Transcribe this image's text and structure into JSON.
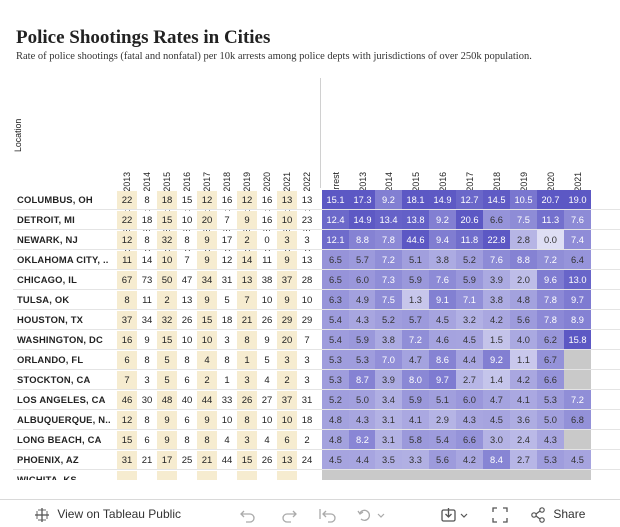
{
  "title": "Police Shootings Rates in Cities",
  "subtitle": "Rate of police shootings (fatal and nonfatal) per 10k arrests among police depts with jurisdictions of over 250k population.",
  "location_header": "Location",
  "count_headers": [
    "Police Shootings 2013",
    "Police Shootings 2014",
    "Police Shootings 2015",
    "Police Shootings 2016",
    "Police Shootings 2017",
    "Police Shootings 2018",
    "Police Shootings 2019",
    "Police Shootings 2020",
    "Police Shootings 2021",
    "Police Shootings 2022"
  ],
  "rate_headers": [
    "Avg Shootings/Arrest",
    "Shootings/Arrest 2013",
    "Shootings/Arrest 2014",
    "Shootings/Arrest 2015",
    "Shootings/Arrest 2016",
    "Shootings/Arrest 2017",
    "Shootings/Arrest 2018",
    "Shootings/Arrest 2019",
    "Shootings/Arrest 2020",
    "Shootings/Arrest 2021"
  ],
  "rows": [
    {
      "loc": "COLUMBUS, OH",
      "counts": [
        "22",
        "8",
        "18",
        "15",
        "12",
        "16",
        "12",
        "16",
        "13",
        "13"
      ],
      "rates": [
        "15.1",
        "17.3",
        "9.2",
        "18.1",
        "14.9",
        "12.7",
        "14.5",
        "10.5",
        "20.7",
        "19.0"
      ]
    },
    {
      "loc": "DETROIT, MI",
      "counts": [
        "22",
        "18",
        "15",
        "10",
        "20",
        "7",
        "9",
        "16",
        "10",
        "23"
      ],
      "rates": [
        "12.4",
        "14.9",
        "13.4",
        "13.8",
        "9.2",
        "20.6",
        "6.6",
        "7.5",
        "11.3",
        "7.6"
      ]
    },
    {
      "loc": "NEWARK, NJ",
      "counts": [
        "12",
        "8",
        "32",
        "8",
        "9",
        "17",
        "2",
        "0",
        "3",
        "3"
      ],
      "rates": [
        "12.1",
        "8.8",
        "7.8",
        "44.6",
        "9.4",
        "11.8",
        "22.8",
        "2.8",
        "0.0",
        "7.4"
      ]
    },
    {
      "loc": "OKLAHOMA CITY, ..",
      "counts": [
        "11",
        "14",
        "10",
        "7",
        "9",
        "12",
        "14",
        "11",
        "9",
        "13"
      ],
      "rates": [
        "6.5",
        "5.7",
        "7.2",
        "5.1",
        "3.8",
        "5.2",
        "7.6",
        "8.8",
        "7.2",
        "6.4"
      ]
    },
    {
      "loc": "CHICAGO, IL",
      "counts": [
        "67",
        "73",
        "50",
        "47",
        "34",
        "31",
        "13",
        "38",
        "37",
        "28"
      ],
      "rates": [
        "6.5",
        "6.0",
        "7.3",
        "5.9",
        "7.6",
        "5.9",
        "3.9",
        "2.0",
        "9.6",
        "13.0"
      ]
    },
    {
      "loc": "TULSA, OK",
      "counts": [
        "8",
        "11",
        "2",
        "13",
        "9",
        "5",
        "7",
        "10",
        "9",
        "10"
      ],
      "rates": [
        "6.3",
        "4.9",
        "7.5",
        "1.3",
        "9.1",
        "7.1",
        "3.8",
        "4.8",
        "7.8",
        "9.7"
      ]
    },
    {
      "loc": "HOUSTON, TX",
      "counts": [
        "37",
        "34",
        "32",
        "26",
        "15",
        "18",
        "21",
        "26",
        "29",
        "29"
      ],
      "rates": [
        "5.4",
        "4.3",
        "5.2",
        "5.7",
        "4.5",
        "3.2",
        "4.2",
        "5.6",
        "7.8",
        "8.9"
      ]
    },
    {
      "loc": "WASHINGTON, DC",
      "counts": [
        "16",
        "9",
        "15",
        "10",
        "10",
        "3",
        "8",
        "9",
        "20",
        "7"
      ],
      "rates": [
        "5.4",
        "5.9",
        "3.8",
        "7.2",
        "4.6",
        "4.5",
        "1.5",
        "4.0",
        "6.2",
        "15.8"
      ]
    },
    {
      "loc": "ORLANDO, FL",
      "counts": [
        "6",
        "8",
        "5",
        "8",
        "4",
        "8",
        "1",
        "5",
        "3",
        "3"
      ],
      "rates": [
        "5.3",
        "5.3",
        "7.0",
        "4.7",
        "8.6",
        "4.4",
        "9.2",
        "1.1",
        "6.7",
        ""
      ]
    },
    {
      "loc": "STOCKTON, CA",
      "counts": [
        "7",
        "3",
        "5",
        "6",
        "2",
        "1",
        "3",
        "4",
        "2",
        "3"
      ],
      "rates": [
        "5.3",
        "8.7",
        "3.9",
        "8.0",
        "9.7",
        "2.7",
        "1.4",
        "4.2",
        "6.6",
        ""
      ]
    },
    {
      "loc": "LOS ANGELES, CA",
      "counts": [
        "46",
        "30",
        "48",
        "40",
        "44",
        "33",
        "26",
        "27",
        "37",
        "31"
      ],
      "rates": [
        "5.2",
        "5.0",
        "3.4",
        "5.9",
        "5.1",
        "6.0",
        "4.7",
        "4.1",
        "5.3",
        "7.2"
      ]
    },
    {
      "loc": "ALBUQUERQUE, N..",
      "counts": [
        "12",
        "8",
        "9",
        "6",
        "9",
        "10",
        "8",
        "10",
        "10",
        "18"
      ],
      "rates": [
        "4.8",
        "4.3",
        "3.1",
        "4.1",
        "2.9",
        "4.3",
        "4.5",
        "3.6",
        "5.0",
        "6.8"
      ]
    },
    {
      "loc": "LONG BEACH, CA",
      "counts": [
        "15",
        "6",
        "9",
        "8",
        "8",
        "4",
        "3",
        "4",
        "6",
        "2"
      ],
      "rates": [
        "4.8",
        "8.2",
        "3.1",
        "5.8",
        "5.4",
        "6.6",
        "3.0",
        "2.4",
        "4.3",
        ""
      ]
    },
    {
      "loc": "PHOENIX, AZ",
      "counts": [
        "31",
        "21",
        "17",
        "25",
        "21",
        "44",
        "15",
        "26",
        "13",
        "24"
      ],
      "rates": [
        "4.5",
        "4.4",
        "3.5",
        "3.3",
        "5.6",
        "4.2",
        "8.4",
        "2.7",
        "5.3",
        "4.5"
      ]
    },
    {
      "loc": "WICHITA, KS",
      "counts": [
        "",
        "",
        "",
        "",
        "",
        "",
        "",
        "",
        "",
        ""
      ],
      "rates": [
        "",
        "",
        "",
        "",
        "",
        "",
        "",
        "",
        "",
        ""
      ]
    }
  ],
  "toolbar": {
    "view_label": "View on Tableau Public",
    "share_label": "Share"
  }
}
